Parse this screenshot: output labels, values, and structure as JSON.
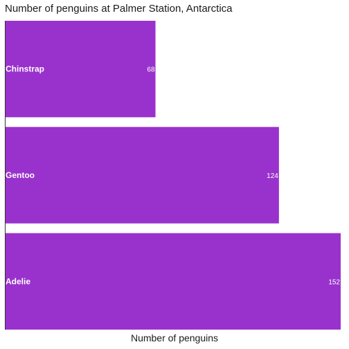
{
  "chart_data": {
    "type": "bar",
    "orientation": "horizontal",
    "title": "Number of penguins at Palmer Station, Antarctica",
    "xlabel": "Number of penguins",
    "ylabel": "",
    "categories": [
      "Chinstrap",
      "Gentoo",
      "Adelie"
    ],
    "values": [
      68,
      124,
      152
    ],
    "data_labels": [
      "68",
      "124",
      "152"
    ],
    "xlim": [
      0,
      152
    ],
    "grid": false,
    "legend": "none",
    "colors": {
      "bar": "#9932cc",
      "label_text": "#ffffff",
      "axis": "#333333"
    }
  }
}
